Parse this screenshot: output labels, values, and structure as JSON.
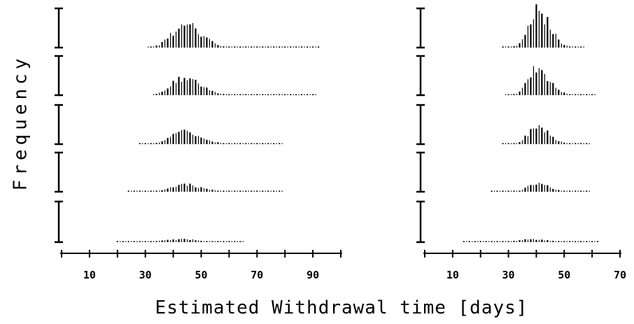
{
  "y_label": "Frequency",
  "x_label": "Estimated Withdrawal time [days]",
  "chart_data": [
    {
      "type": "bar",
      "subtype": "stacked-histograms",
      "xlabel": "Estimated Withdrawal time [days]",
      "ylabel": "Frequency",
      "xlim": [
        0,
        100
      ],
      "xticks": [
        0,
        10,
        20,
        30,
        40,
        50,
        60,
        70,
        80,
        90,
        100
      ],
      "xtick_labels": [
        "10",
        "30",
        "50",
        "70",
        "90"
      ],
      "xtick_label_values": [
        10,
        30,
        50,
        70,
        90
      ],
      "bin_width": 1,
      "panels": [
        {
          "peak": 44,
          "min": 31,
          "max": 92,
          "sigma_left": 4.5,
          "sigma_right": 6,
          "max_height": 0.58
        },
        {
          "peak": 44,
          "min": 33,
          "max": 91,
          "sigma_left": 4.5,
          "sigma_right": 6,
          "max_height": 0.44
        },
        {
          "peak": 44,
          "min": 28,
          "max": 79,
          "sigma_left": 4.5,
          "sigma_right": 6,
          "max_height": 0.32
        },
        {
          "peak": 44,
          "min": 24,
          "max": 79,
          "sigma_left": 4.5,
          "sigma_right": 6,
          "max_height": 0.18
        },
        {
          "peak": 43,
          "min": 20,
          "max": 65,
          "sigma_left": 6,
          "sigma_right": 6,
          "max_height": 0.07
        }
      ]
    },
    {
      "type": "bar",
      "subtype": "stacked-histograms",
      "xlabel": "Estimated Withdrawal time [days]",
      "ylabel": "Frequency",
      "xlim": [
        0,
        70
      ],
      "xticks": [
        0,
        10,
        20,
        30,
        40,
        50,
        60,
        70
      ],
      "xtick_labels": [
        "10",
        "30",
        "50",
        "70"
      ],
      "xtick_label_values": [
        10,
        30,
        50,
        70
      ],
      "bin_width": 1,
      "panels": [
        {
          "peak": 40,
          "min": 28,
          "max": 57,
          "sigma_left": 3,
          "sigma_right": 4.5,
          "max_height": 0.96
        },
        {
          "peak": 40,
          "min": 29,
          "max": 61,
          "sigma_left": 3,
          "sigma_right": 4.5,
          "max_height": 0.66
        },
        {
          "peak": 40,
          "min": 28,
          "max": 59,
          "sigma_left": 3,
          "sigma_right": 4.5,
          "max_height": 0.44
        },
        {
          "peak": 40,
          "min": 24,
          "max": 59,
          "sigma_left": 3,
          "sigma_right": 4.5,
          "max_height": 0.2
        },
        {
          "peak": 39,
          "min": 14,
          "max": 62,
          "sigma_left": 5,
          "sigma_right": 5,
          "max_height": 0.07
        }
      ]
    }
  ]
}
